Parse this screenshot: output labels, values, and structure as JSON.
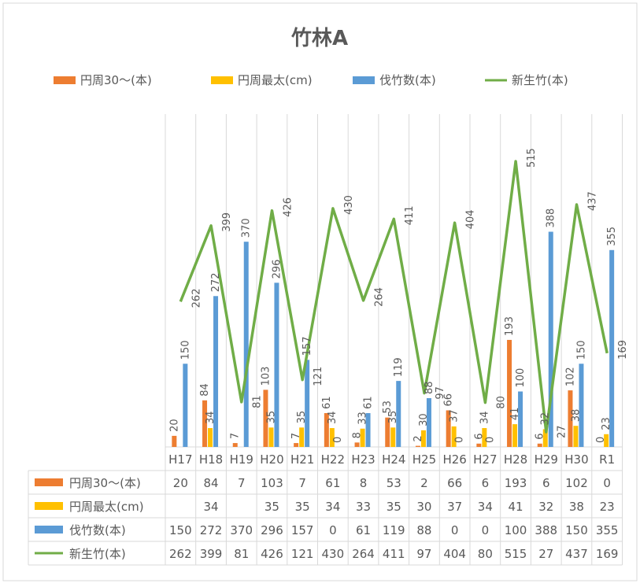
{
  "chart_data": {
    "type": "bar",
    "title": "竹林A",
    "categories": [
      "H17",
      "H18",
      "H19",
      "H20",
      "H21",
      "H22",
      "H23",
      "H24",
      "H25",
      "H26",
      "H27",
      "H28",
      "H29",
      "H30",
      "R1"
    ],
    "series": [
      {
        "name": "円周30～(本)",
        "type": "bar",
        "color": "#ED7D31",
        "values": [
          20,
          84,
          7,
          103,
          7,
          61,
          8,
          53,
          2,
          66,
          6,
          193,
          6,
          102,
          0
        ]
      },
      {
        "name": "円周最太(cm)",
        "type": "bar",
        "color": "#FFC000",
        "values": [
          null,
          34,
          null,
          35,
          35,
          34,
          33,
          35,
          30,
          37,
          34,
          41,
          32,
          38,
          23
        ]
      },
      {
        "name": "伐竹数(本)",
        "type": "bar",
        "color": "#5B9BD5",
        "values": [
          150,
          272,
          370,
          296,
          157,
          0,
          61,
          119,
          88,
          0,
          0,
          100,
          388,
          150,
          355
        ]
      },
      {
        "name": "新生竹(本)",
        "type": "line",
        "color": "#70AD47",
        "values": [
          262,
          399,
          81,
          426,
          121,
          430,
          264,
          411,
          97,
          404,
          80,
          515,
          27,
          437,
          169
        ]
      }
    ],
    "data_table": true,
    "legend_position": "top",
    "gridlines": "vertical"
  }
}
